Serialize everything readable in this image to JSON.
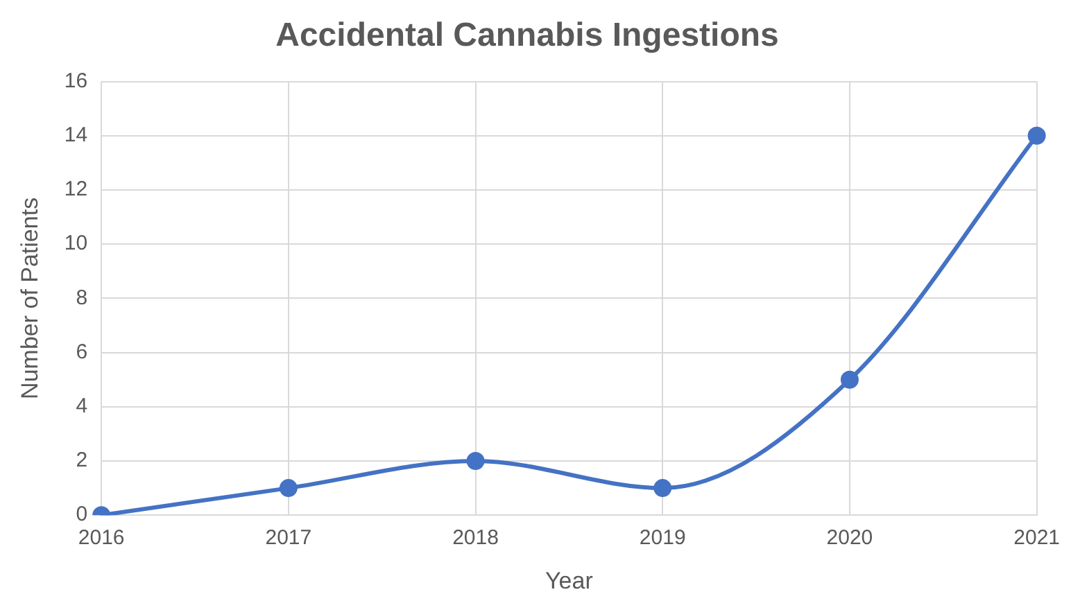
{
  "chart_data": {
    "type": "line",
    "title": "Accidental Cannabis Ingestions",
    "xlabel": "Year",
    "ylabel": "Number of Patients",
    "categories": [
      "2016",
      "2017",
      "2018",
      "2019",
      "2020",
      "2021"
    ],
    "series": [
      {
        "color": "#4472c4",
        "values": [
          0,
          1,
          2,
          1,
          5,
          14
        ]
      }
    ],
    "ylim": [
      0,
      16
    ],
    "yticks": [
      0,
      2,
      4,
      6,
      8,
      10,
      12,
      14,
      16
    ],
    "grid": true,
    "legend": false,
    "marker": "circle",
    "line_style": "solid"
  }
}
